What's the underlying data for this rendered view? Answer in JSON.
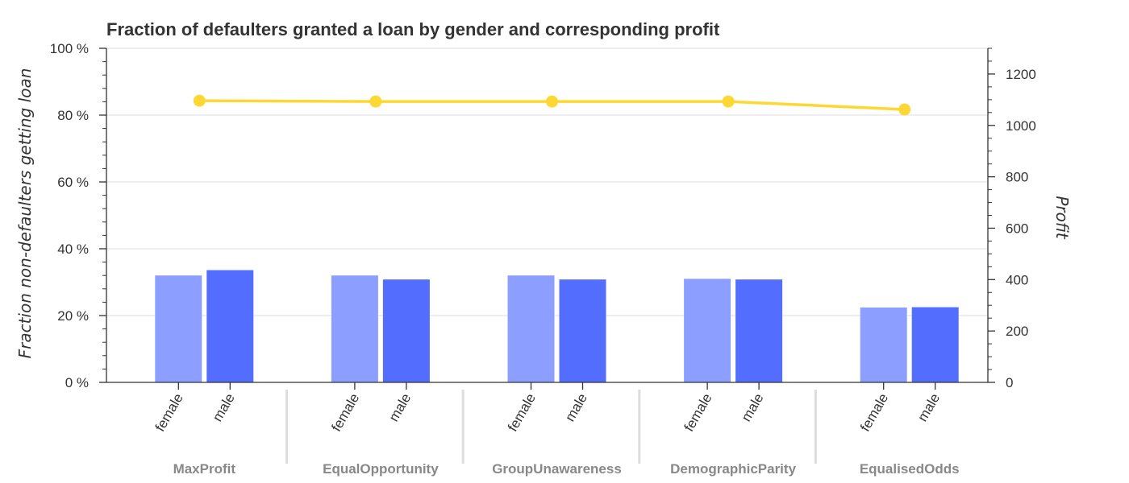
{
  "chart_data": {
    "type": "bar",
    "title": "Fraction of defaulters granted a loan by gender and corresponding profit",
    "ylabel": "Fraction non-defaulters getting loan",
    "y2label": "Profit",
    "ylim": [
      0,
      100
    ],
    "y2lim": [
      0,
      1300
    ],
    "yticks": [
      "0 %",
      "20 %",
      "40 %",
      "60 %",
      "80 %",
      "100 %"
    ],
    "y2ticks": [
      "0",
      "200",
      "400",
      "600",
      "800",
      "1000",
      "1200"
    ],
    "groups": [
      "MaxProfit",
      "EqualOpportunity",
      "GroupUnawareness",
      "DemographicParity",
      "EqualisedOdds"
    ],
    "subcategories": [
      "female",
      "male"
    ],
    "series": [
      {
        "name": "female",
        "color": "#8c9eff",
        "values": [
          32.0,
          32.0,
          32.0,
          31.0,
          22.4
        ]
      },
      {
        "name": "male",
        "color": "#536dfe",
        "values": [
          33.6,
          30.8,
          30.8,
          30.8,
          22.5
        ]
      },
      {
        "name": "profit",
        "color": "#fdd835",
        "type": "line",
        "axis": "right",
        "values": [
          1096,
          1093,
          1093,
          1093,
          1062
        ]
      }
    ],
    "grid": true
  }
}
